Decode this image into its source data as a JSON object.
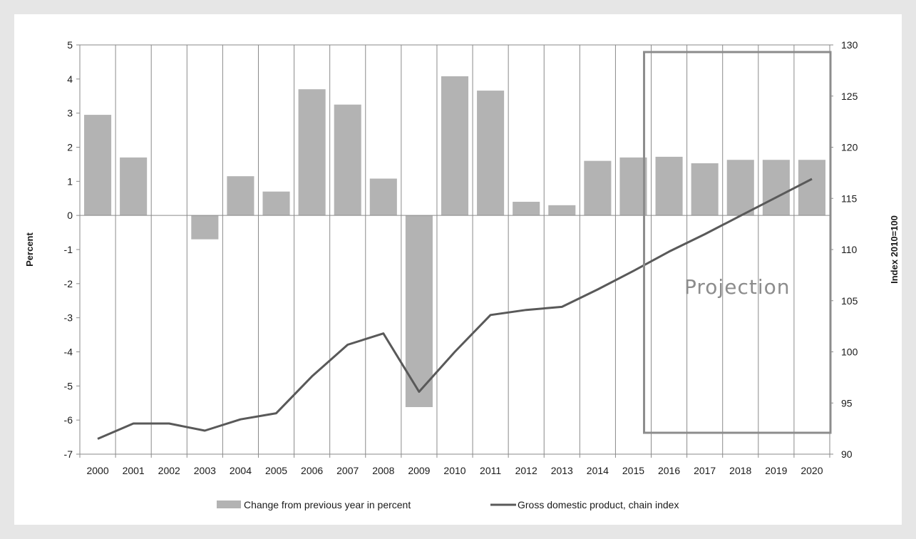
{
  "chart_data": {
    "type": "bar",
    "categories": [
      "2000",
      "2001",
      "2002",
      "2003",
      "2004",
      "2005",
      "2006",
      "2007",
      "2008",
      "2009",
      "2010",
      "2011",
      "2012",
      "2013",
      "2014",
      "2015",
      "2016",
      "2017",
      "2018",
      "2019",
      "2020"
    ],
    "series": [
      {
        "name": "Change from previous year in percent",
        "type": "bar",
        "axis": "left",
        "color": "#b3b3b3",
        "values": [
          2.95,
          1.7,
          0.0,
          -0.7,
          1.15,
          0.7,
          3.7,
          3.25,
          1.08,
          -5.62,
          4.08,
          3.66,
          0.4,
          0.3,
          1.6,
          1.7,
          1.72,
          1.53,
          1.63,
          1.63,
          1.63
        ]
      },
      {
        "name": "Gross domestic product, chain index",
        "type": "line",
        "axis": "right",
        "color": "#595959",
        "values": [
          91.5,
          93.0,
          93.0,
          92.3,
          93.4,
          94.0,
          97.6,
          100.7,
          101.8,
          96.1,
          100.0,
          103.6,
          104.1,
          104.4,
          106.1,
          107.9,
          109.8,
          111.5,
          113.3,
          115.1,
          116.9
        ]
      }
    ],
    "y_left": {
      "label": "Percent",
      "ylim": [
        -7,
        5
      ],
      "ticks": [
        5,
        4,
        3,
        2,
        1,
        0,
        -1,
        -2,
        -3,
        -4,
        -5,
        -6,
        -7
      ]
    },
    "y_right": {
      "label": "Index 2010=100",
      "ylim": [
        90,
        130
      ],
      "ticks": [
        130,
        125,
        120,
        115,
        110,
        105,
        100,
        95,
        90
      ]
    },
    "annotation": {
      "text": "Projection",
      "from": "2016",
      "to": "2020"
    },
    "grid": "vertical",
    "legend": "bottom"
  }
}
